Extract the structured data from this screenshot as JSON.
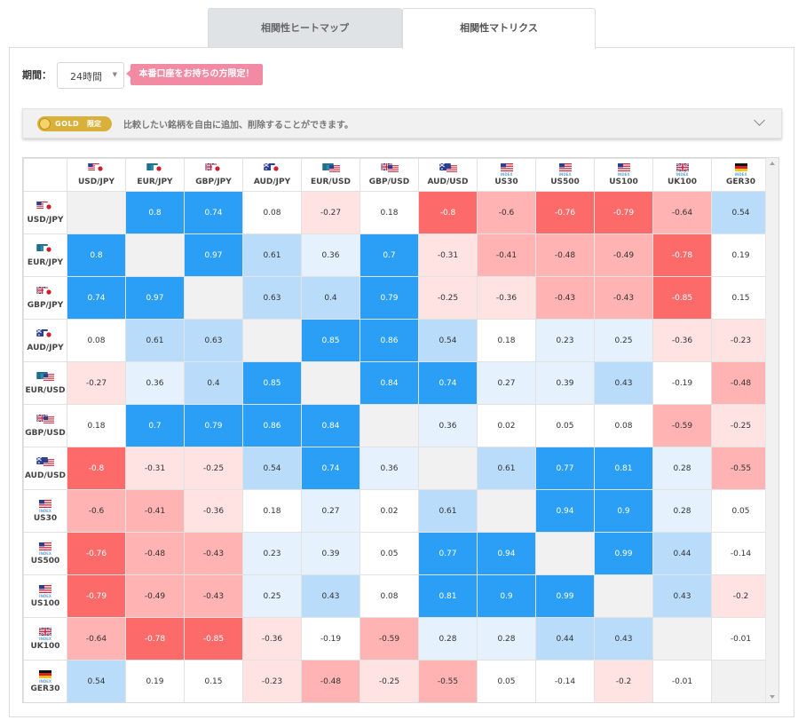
{
  "tabs": [
    {
      "label": "相関性ヒートマップ",
      "active": false
    },
    {
      "label": "相関性マトリクス",
      "active": true
    }
  ],
  "period": {
    "label": "期間：",
    "value": "24時間"
  },
  "badge": {
    "text": "本番口座をお持ちの方限定！",
    "color": "#f28aa3"
  },
  "gold_bar": {
    "pill_text": "GOLD",
    "pill_sub": "限定",
    "message": "比較したい銘柄を自由に追加、削除することができます。"
  },
  "colors": {
    "strong_positive": "#2a9ff5",
    "positive": "#b9dcfb",
    "weak_positive": "#e5f1fd",
    "neutral": "#ffffff",
    "weak_negative": "#ffe3e3",
    "negative": "#ffb3b3",
    "strong_negative": "#fd6a6a",
    "diagonal": "#f1f1f1"
  },
  "instruments": [
    {
      "label": "USD/JPY",
      "flags": [
        "us",
        "jp"
      ],
      "sub": ""
    },
    {
      "label": "EUR/JPY",
      "flags": [
        "eu",
        "jp"
      ],
      "sub": ""
    },
    {
      "label": "GBP/JPY",
      "flags": [
        "uk",
        "jp"
      ],
      "sub": ""
    },
    {
      "label": "AUD/JPY",
      "flags": [
        "au",
        "jp"
      ],
      "sub": ""
    },
    {
      "label": "EUR/USD",
      "flags": [
        "eu",
        "us"
      ],
      "sub": ""
    },
    {
      "label": "GBP/USD",
      "flags": [
        "uk",
        "us"
      ],
      "sub": ""
    },
    {
      "label": "AUD/USD",
      "flags": [
        "au",
        "us"
      ],
      "sub": ""
    },
    {
      "label": "US30",
      "flags": [
        "us"
      ],
      "sub": "INDEX"
    },
    {
      "label": "US500",
      "flags": [
        "us"
      ],
      "sub": "INDEX"
    },
    {
      "label": "US100",
      "flags": [
        "us"
      ],
      "sub": "INDEX"
    },
    {
      "label": "UK100",
      "flags": [
        "uk"
      ],
      "sub": "INDEX"
    },
    {
      "label": "GER30",
      "flags": [
        "de"
      ],
      "sub": "INDEX"
    }
  ],
  "matrix": [
    [
      null,
      0.8,
      0.74,
      0.08,
      -0.27,
      0.18,
      -0.8,
      -0.6,
      -0.76,
      -0.79,
      -0.64,
      0.54
    ],
    [
      0.8,
      null,
      0.97,
      0.61,
      0.36,
      0.7,
      -0.31,
      -0.41,
      -0.48,
      -0.49,
      -0.78,
      0.19
    ],
    [
      0.74,
      0.97,
      null,
      0.63,
      0.4,
      0.79,
      -0.25,
      -0.36,
      -0.43,
      -0.43,
      -0.85,
      0.15
    ],
    [
      0.08,
      0.61,
      0.63,
      null,
      0.85,
      0.86,
      0.54,
      0.18,
      0.23,
      0.25,
      -0.36,
      -0.23
    ],
    [
      -0.27,
      0.36,
      0.4,
      0.85,
      null,
      0.84,
      0.74,
      0.27,
      0.39,
      0.43,
      -0.19,
      -0.48
    ],
    [
      0.18,
      0.7,
      0.79,
      0.86,
      0.84,
      null,
      0.36,
      0.02,
      0.05,
      0.08,
      -0.59,
      -0.25
    ],
    [
      -0.8,
      -0.31,
      -0.25,
      0.54,
      0.74,
      0.36,
      null,
      0.61,
      0.77,
      0.81,
      0.28,
      -0.55
    ],
    [
      -0.6,
      -0.41,
      -0.36,
      0.18,
      0.27,
      0.02,
      0.61,
      null,
      0.94,
      0.9,
      0.28,
      0.05
    ],
    [
      -0.76,
      -0.48,
      -0.43,
      0.23,
      0.39,
      0.05,
      0.77,
      0.94,
      null,
      0.99,
      0.44,
      -0.14
    ],
    [
      -0.79,
      -0.49,
      -0.43,
      0.25,
      0.43,
      0.08,
      0.81,
      0.9,
      0.99,
      null,
      0.43,
      -0.2
    ],
    [
      -0.64,
      -0.78,
      -0.85,
      -0.36,
      -0.19,
      -0.59,
      0.28,
      0.28,
      0.44,
      0.43,
      null,
      -0.01
    ],
    [
      0.54,
      0.19,
      0.15,
      -0.23,
      -0.48,
      -0.25,
      -0.55,
      0.05,
      -0.14,
      -0.2,
      -0.01,
      null
    ]
  ]
}
